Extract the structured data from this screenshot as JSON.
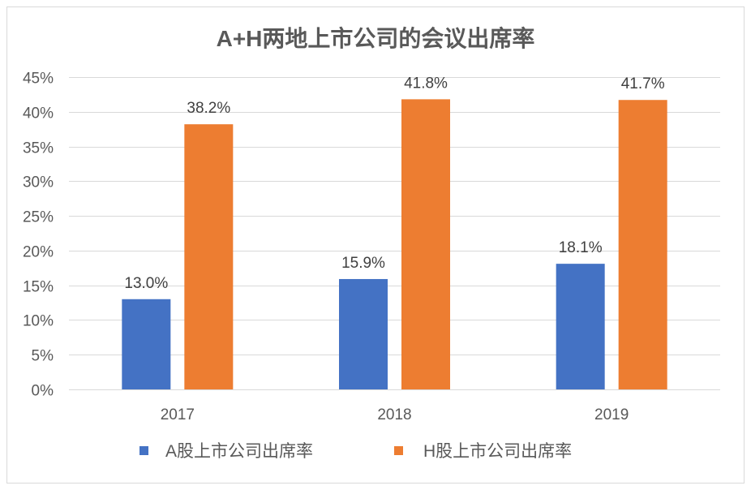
{
  "chart_data": {
    "type": "bar",
    "title": "A+H两地上市公司的会议出席率",
    "categories": [
      "2017",
      "2018",
      "2019"
    ],
    "series": [
      {
        "name": "A股上市公司出席率",
        "values": [
          13.0,
          15.9,
          18.1
        ],
        "labels": [
          "13.0%",
          "15.9%",
          "18.1%"
        ],
        "color": "#4472c4"
      },
      {
        "name": "H股上市公司出席率",
        "values": [
          38.2,
          41.8,
          41.7
        ],
        "labels": [
          "38.2%",
          "41.8%",
          "41.7%"
        ],
        "color": "#ed7d31"
      }
    ],
    "xlabel": "",
    "ylabel": "",
    "ylim": [
      0,
      45
    ],
    "yticks": [
      0,
      5,
      10,
      15,
      20,
      25,
      30,
      35,
      40,
      45
    ],
    "ytick_labels": [
      "0%",
      "5%",
      "10%",
      "15%",
      "20%",
      "25%",
      "30%",
      "35%",
      "40%",
      "45%"
    ],
    "grid": true,
    "legend": "bottom"
  }
}
